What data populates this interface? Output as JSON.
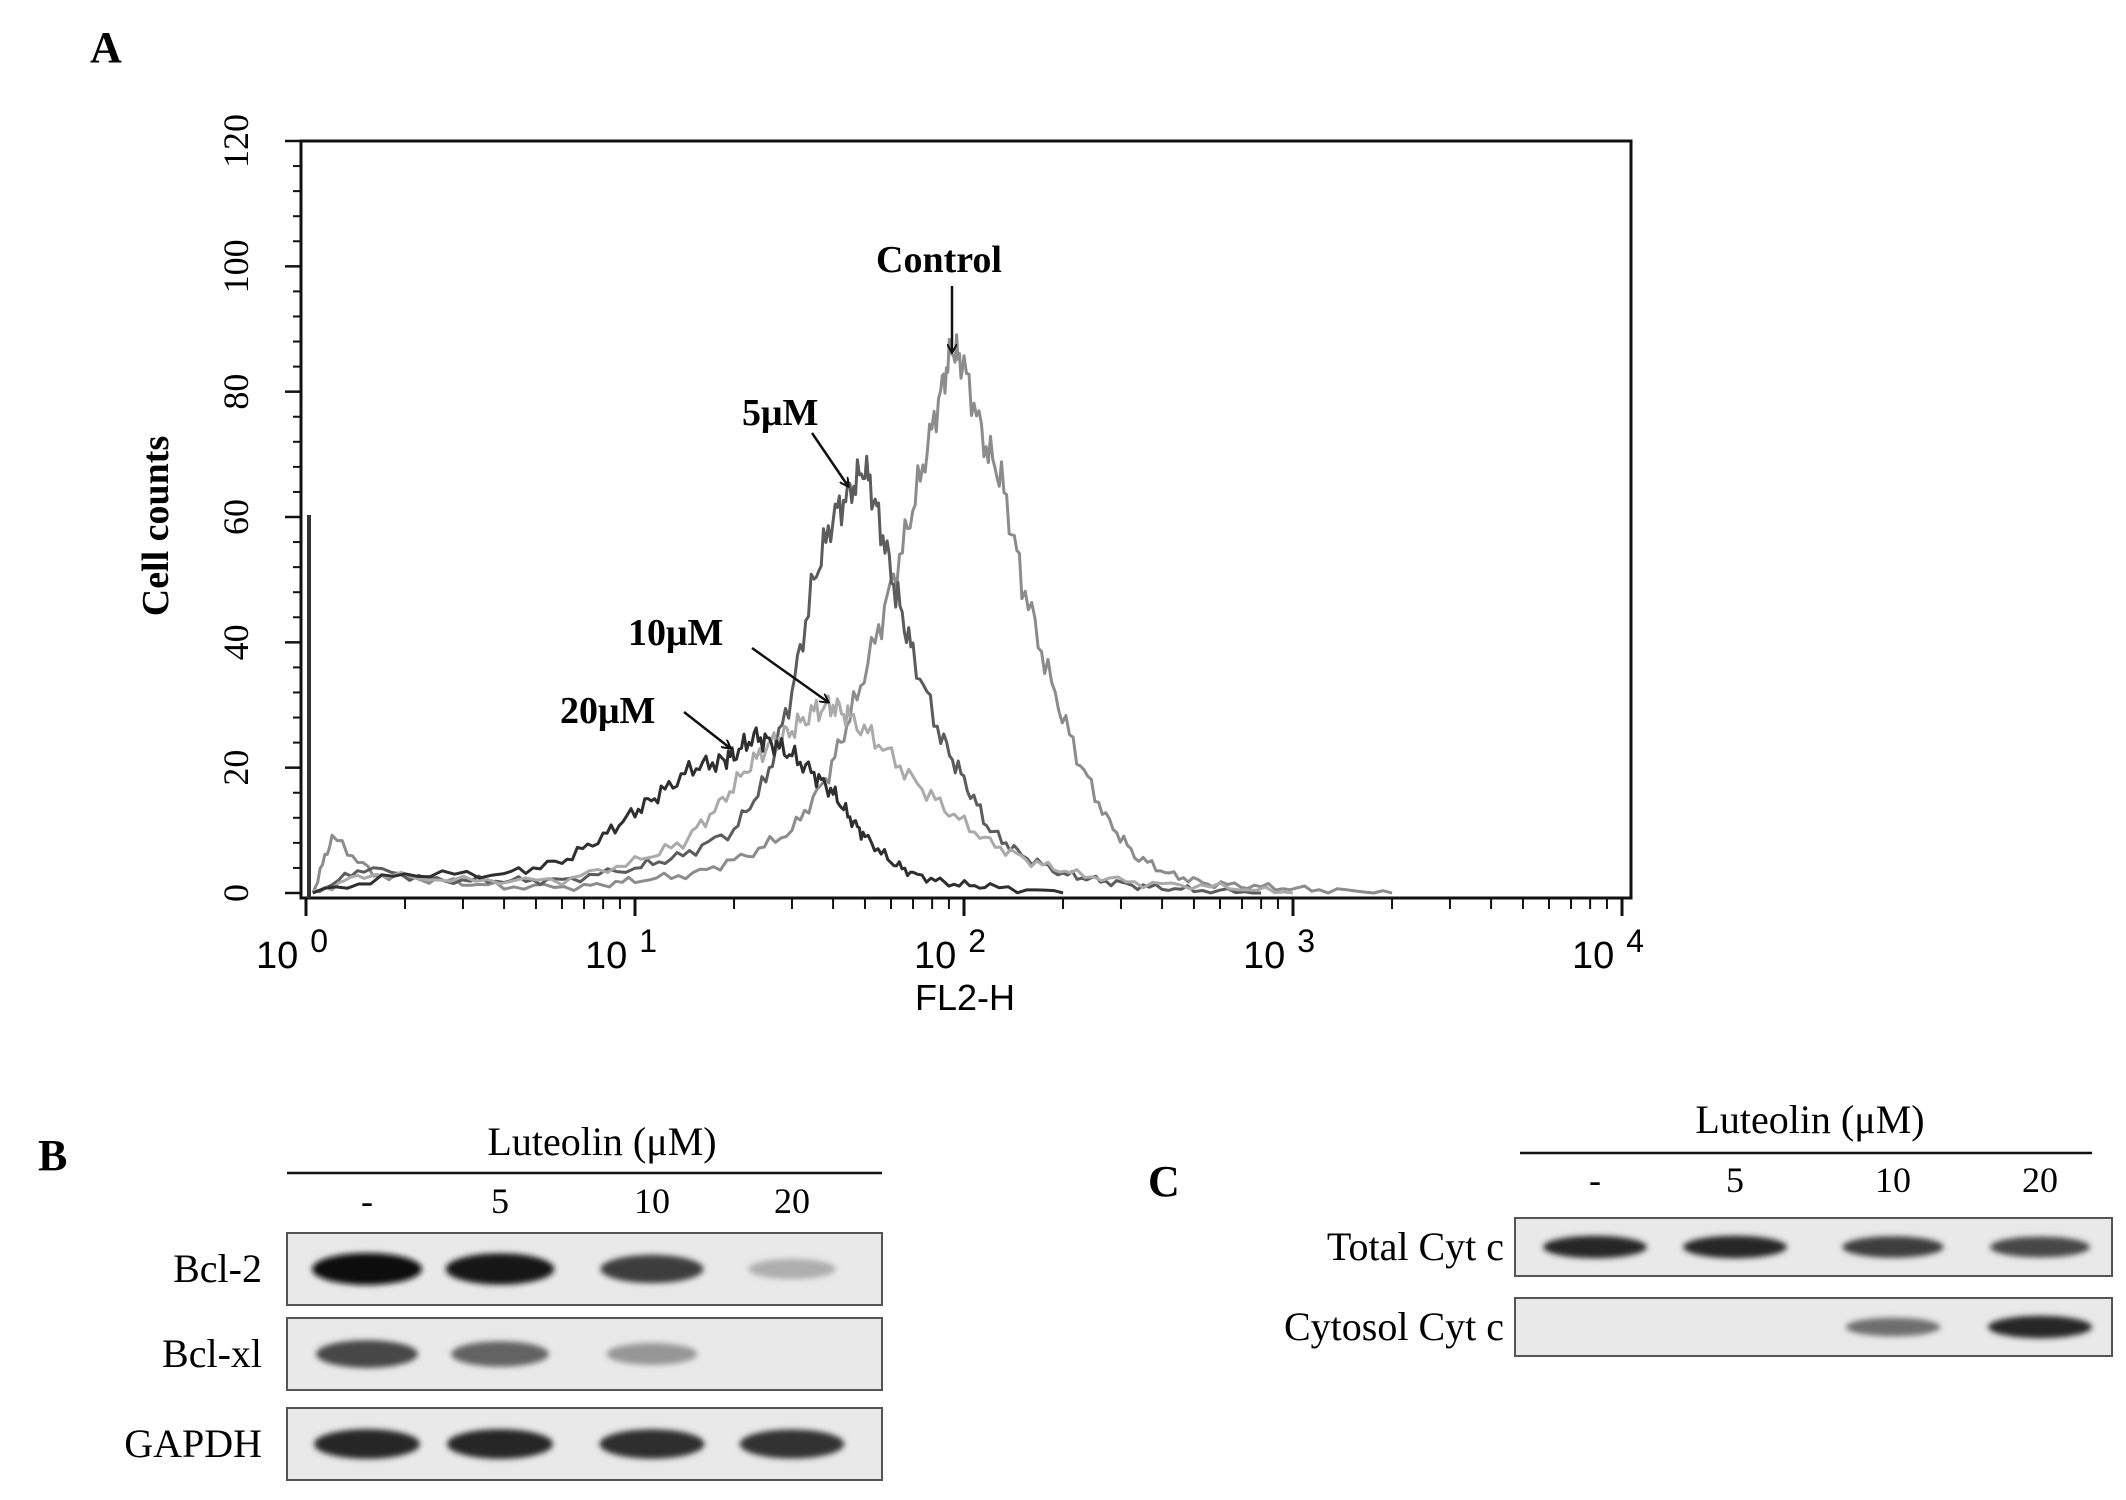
{
  "panels": {
    "a": {
      "label": "A"
    },
    "b": {
      "label": "B"
    },
    "c": {
      "label": "C"
    }
  },
  "chart_data": {
    "type": "line",
    "title": "",
    "xlabel": "FL2-H",
    "ylabel": "Cell counts",
    "x_scale": "log",
    "xlim": [
      1,
      10000
    ],
    "ylim": [
      0,
      120
    ],
    "yticks": [
      0,
      20,
      40,
      60,
      80,
      100,
      120
    ],
    "xticks": [
      {
        "value": 1,
        "base": "10",
        "exp": "0"
      },
      {
        "value": 10,
        "base": "10",
        "exp": "1"
      },
      {
        "value": 100,
        "base": "10",
        "exp": "2"
      },
      {
        "value": 1000,
        "base": "10",
        "exp": "3"
      },
      {
        "value": 10000,
        "base": "10",
        "exp": "4"
      }
    ],
    "series": [
      {
        "name": "Control",
        "color": "#8c8c8c",
        "x": [
          1.05,
          1.2,
          1.6,
          2.5,
          4,
          7,
          10,
          15,
          22,
          30,
          38,
          45,
          55,
          65,
          75,
          85,
          92,
          100,
          115,
          130,
          150,
          180,
          220,
          270,
          330,
          420,
          550,
          800,
          1200,
          2000
        ],
        "y": [
          0,
          9,
          3,
          2,
          1,
          1,
          2,
          3,
          6,
          10,
          18,
          28,
          42,
          55,
          68,
          80,
          87,
          84,
          72,
          66,
          50,
          35,
          22,
          12,
          6,
          3,
          1.5,
          1,
          0.5,
          0
        ]
      },
      {
        "name": "5μM",
        "color": "#5c5c5c",
        "x": [
          1.05,
          1.5,
          2.5,
          4,
          6,
          10,
          14,
          20,
          25,
          30,
          35,
          40,
          45,
          50,
          55,
          62,
          70,
          85,
          100,
          120,
          150,
          200,
          260,
          350,
          500,
          800
        ],
        "y": [
          0,
          4,
          2,
          2,
          2,
          4,
          6,
          10,
          18,
          32,
          50,
          60,
          64,
          68,
          60,
          48,
          38,
          25,
          18,
          10,
          6,
          3,
          2,
          1,
          0.5,
          0
        ]
      },
      {
        "name": "10μM",
        "color": "#aaaaaa",
        "x": [
          1.05,
          1.5,
          3,
          6,
          10,
          14,
          18,
          22,
          26,
          30,
          35,
          40,
          45,
          55,
          70,
          90,
          120,
          160,
          220,
          350,
          600,
          1000
        ],
        "y": [
          0,
          3,
          2,
          2,
          5,
          8,
          14,
          20,
          24,
          26,
          29,
          30,
          28,
          24,
          18,
          13,
          8,
          5,
          3,
          1.5,
          1,
          0
        ]
      },
      {
        "name": "20μM",
        "color": "#2f2f2f",
        "x": [
          1.05,
          2,
          4,
          6,
          8,
          10,
          12,
          15,
          18,
          20,
          23,
          26,
          30,
          35,
          40,
          45,
          50,
          60,
          70,
          90,
          120,
          200
        ],
        "y": [
          0,
          3,
          3,
          5,
          9,
          13,
          16,
          20,
          21,
          22,
          25,
          24,
          22,
          19,
          16,
          12,
          9,
          5,
          3,
          1.5,
          1,
          0
        ]
      }
    ],
    "annotations": [
      {
        "text": "Control"
      },
      {
        "text": "5μM"
      },
      {
        "text": "10μM"
      },
      {
        "text": "20μM"
      }
    ]
  },
  "blot_b": {
    "header": "Luteolin (μM)",
    "lanes": [
      "-",
      "5",
      "10",
      "20"
    ],
    "rows": [
      {
        "label": "Bcl-2",
        "intensities": [
          1.0,
          0.95,
          0.75,
          0.18
        ]
      },
      {
        "label": "Bcl-xl",
        "intensities": [
          0.7,
          0.55,
          0.3,
          0.0
        ]
      },
      {
        "label": "GAPDH",
        "intensities": [
          0.85,
          0.85,
          0.82,
          0.8
        ]
      }
    ]
  },
  "blot_c": {
    "header": "Luteolin (μM)",
    "lanes": [
      "-",
      "5",
      "10",
      "20"
    ],
    "rows": [
      {
        "label": "Total Cyt c",
        "intensities": [
          0.85,
          0.85,
          0.75,
          0.7
        ]
      },
      {
        "label": "Cytosol Cyt c",
        "intensities": [
          0.0,
          0.0,
          0.5,
          0.85
        ]
      }
    ]
  }
}
